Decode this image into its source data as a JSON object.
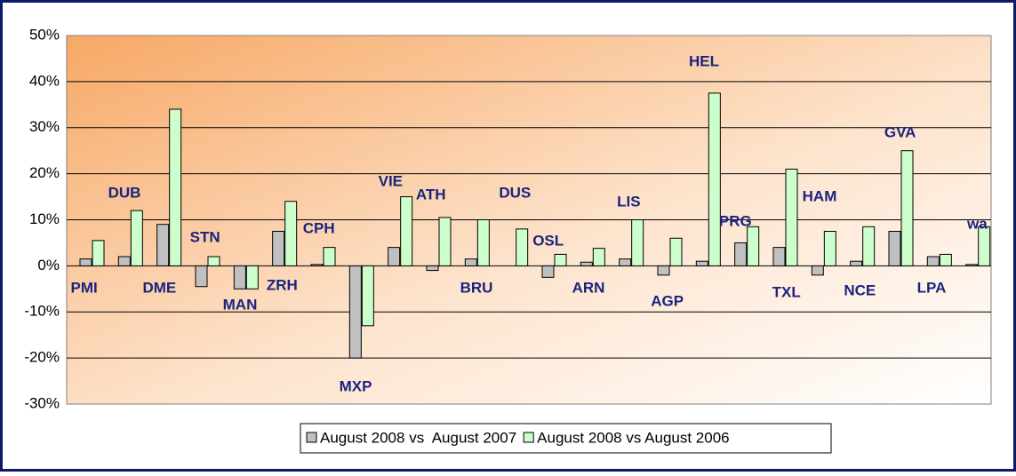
{
  "chart_data": {
    "type": "bar",
    "categories": [
      "PMI",
      "DUB",
      "DME",
      "STN",
      "MAN",
      "ZRH",
      "CPH",
      "MXP",
      "VIE",
      "ATH",
      "BRU",
      "DUS",
      "OSL",
      "ARN",
      "LIS",
      "AGP",
      "HEL",
      "PRG",
      "TXL",
      "HAM",
      "NCE",
      "GVA",
      "LPA",
      "wa"
    ],
    "series": [
      {
        "name": "August 2008 vs  August 2007",
        "color": "#c0c0c0",
        "values": [
          1.5,
          2,
          9,
          -4.5,
          -5,
          7.5,
          0.3,
          -20,
          4,
          -1,
          1.5,
          0,
          -2.5,
          0.8,
          1.5,
          -2,
          1,
          5,
          4,
          -2,
          1,
          7.5,
          2,
          0.3
        ]
      },
      {
        "name": "August 2008 vs August 2006",
        "color": "#ccffcc",
        "values": [
          5.5,
          12,
          34,
          2,
          -5,
          14,
          4,
          -13,
          15,
          10.5,
          10,
          8,
          2.5,
          3.8,
          10,
          6,
          37.5,
          8.5,
          21,
          7.5,
          8.5,
          25,
          2.5,
          8.5
        ]
      }
    ],
    "ylim": [
      -30,
      50
    ],
    "yticks": [
      {
        "value": -30,
        "label": "-30%"
      },
      {
        "value": -20,
        "label": "-20%"
      },
      {
        "value": -10,
        "label": "-10%"
      },
      {
        "value": 0,
        "label": "0%"
      },
      {
        "value": 10,
        "label": "10%"
      },
      {
        "value": 20,
        "label": "20%"
      },
      {
        "value": 30,
        "label": "30%"
      },
      {
        "value": 40,
        "label": "40%"
      },
      {
        "value": 50,
        "label": "50%"
      }
    ],
    "grid": true
  }
}
